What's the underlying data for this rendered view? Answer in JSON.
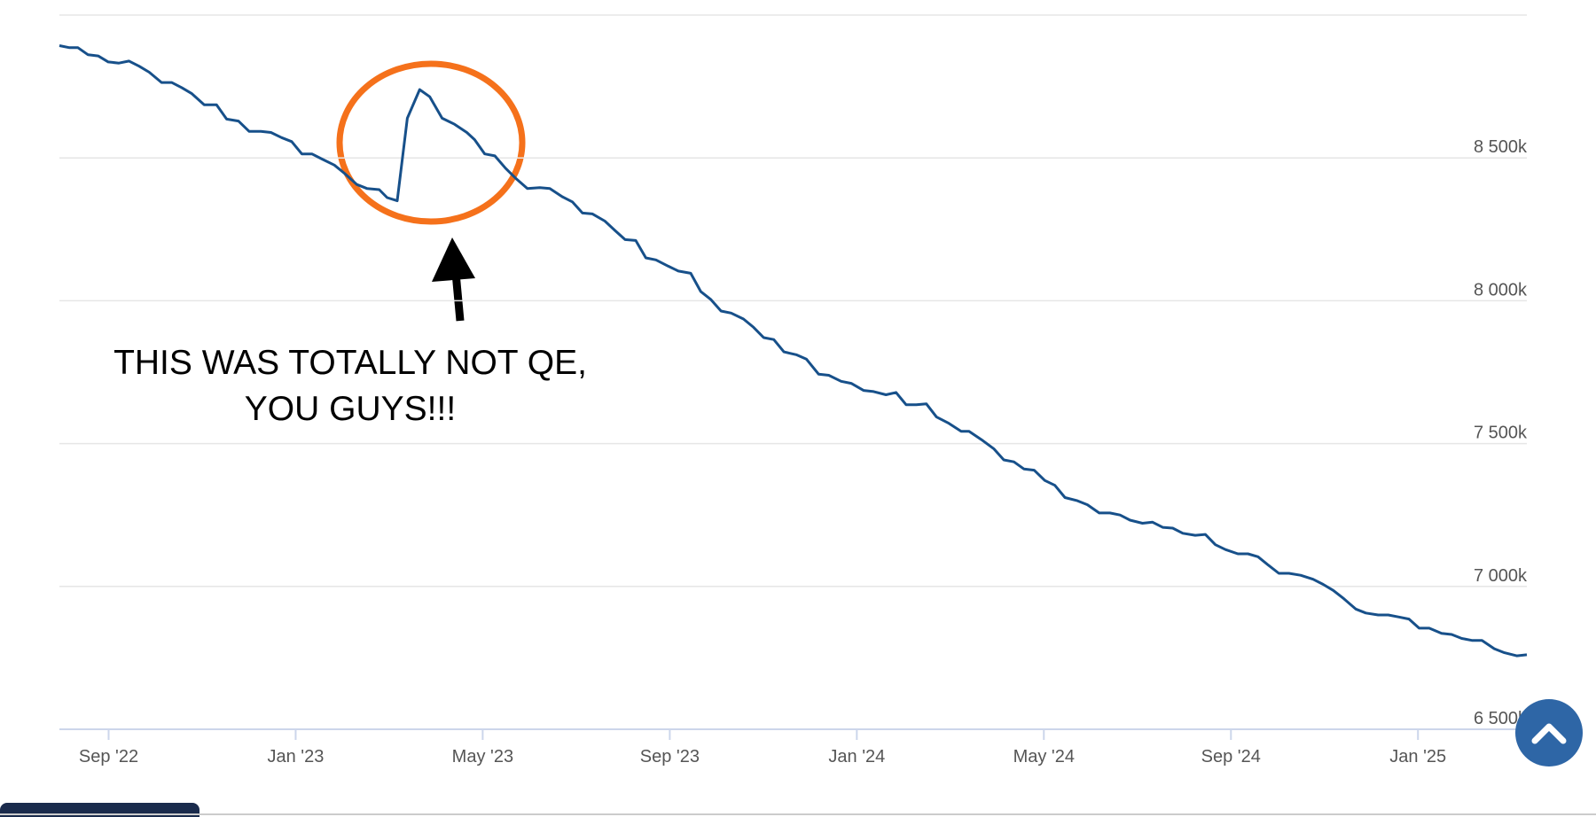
{
  "chart_data": {
    "type": "line",
    "annotation": [
      "THIS WAS TOTALLY NOT QE,",
      "YOU GUYS!!!"
    ],
    "color": "#17508a",
    "x": [
      2022.579,
      2022.597,
      2022.612,
      2022.63,
      2022.648,
      2022.666,
      2022.685,
      2022.703,
      2022.721,
      2022.739,
      2022.761,
      2022.779,
      2022.797,
      2022.815,
      2022.837,
      2022.859,
      2022.877,
      2022.898,
      2022.917,
      2022.938,
      2022.956,
      2022.975,
      2022.993,
      2023.011,
      2023.029,
      2023.047,
      2023.069,
      2023.087,
      2023.109,
      2023.127,
      2023.149,
      2023.163,
      2023.181,
      2023.199,
      2023.221,
      2023.239,
      2023.261,
      2023.283,
      2023.305,
      2023.319,
      2023.337,
      2023.355,
      2023.374,
      2023.392,
      2023.413,
      2023.435,
      2023.453,
      2023.475,
      2023.493,
      2023.511,
      2023.529,
      2023.551,
      2023.569,
      2023.587,
      2023.606,
      2023.624,
      2023.642,
      2023.664,
      2023.682,
      2023.704,
      2023.722,
      2023.74,
      2023.758,
      2023.776,
      2023.798,
      2023.816,
      2023.834,
      2023.852,
      2023.87,
      2023.892,
      2023.91,
      2023.932,
      2023.95,
      2023.972,
      2023.99,
      2024.012,
      2024.03,
      2024.052,
      2024.07,
      2024.088,
      2024.106,
      2024.124,
      2024.142,
      2024.164,
      2024.186,
      2024.2,
      2024.222,
      2024.244,
      2024.262,
      2024.28,
      2024.298,
      2024.316,
      2024.335,
      2024.353,
      2024.371,
      2024.393,
      2024.411,
      2024.432,
      2024.451,
      2024.469,
      2024.487,
      2024.509,
      2024.527,
      2024.545,
      2024.563,
      2024.581,
      2024.603,
      2024.621,
      2024.639,
      2024.657,
      2024.679,
      2024.697,
      2024.715,
      2024.733,
      2024.752,
      2024.77,
      2024.791,
      2024.813,
      2024.831,
      2024.849,
      2024.868,
      2024.889,
      2024.907,
      2024.929,
      2024.947,
      2024.966,
      2024.984,
      2025.002,
      2025.02,
      2025.042,
      2025.06,
      2025.078,
      2025.096,
      2025.114,
      2025.136,
      2025.154,
      2025.176,
      2025.194
    ],
    "values": [
      8893,
      8886,
      8886,
      8861,
      8857,
      8836,
      8832,
      8839,
      8821,
      8800,
      8764,
      8764,
      8746,
      8725,
      8686,
      8686,
      8636,
      8629,
      8593,
      8593,
      8589,
      8571,
      8557,
      8514,
      8514,
      8496,
      8475,
      8446,
      8407,
      8393,
      8389,
      8361,
      8350,
      8639,
      8739,
      8714,
      8639,
      8618,
      8589,
      8564,
      8514,
      8507,
      8464,
      8429,
      8393,
      8396,
      8393,
      8364,
      8346,
      8307,
      8304,
      8279,
      8246,
      8214,
      8211,
      8150,
      8143,
      8121,
      8104,
      8096,
      8032,
      8004,
      7964,
      7957,
      7936,
      7907,
      7871,
      7864,
      7821,
      7811,
      7796,
      7743,
      7739,
      7718,
      7711,
      7686,
      7682,
      7671,
      7679,
      7636,
      7636,
      7639,
      7593,
      7571,
      7543,
      7543,
      7514,
      7482,
      7443,
      7436,
      7411,
      7407,
      7371,
      7354,
      7311,
      7300,
      7286,
      7257,
      7257,
      7250,
      7232,
      7221,
      7225,
      7207,
      7204,
      7186,
      7179,
      7182,
      7146,
      7129,
      7114,
      7114,
      7104,
      7075,
      7046,
      7046,
      7039,
      7025,
      7007,
      6986,
      6957,
      6921,
      6907,
      6900,
      6900,
      6893,
      6886,
      6854,
      6854,
      6836,
      6832,
      6818,
      6811,
      6811,
      6782,
      6768,
      6757,
      6761
    ],
    "xlim": [
      2022.579,
      2025.194
    ],
    "xticks": [
      {
        "value": 2022.6667,
        "label": "Sep '22"
      },
      {
        "value": 2023,
        "label": "Jan '23"
      },
      {
        "value": 2023.3333,
        "label": "May '23"
      },
      {
        "value": 2023.6667,
        "label": "Sep '23"
      },
      {
        "value": 2024,
        "label": "Jan '24"
      },
      {
        "value": 2024.3333,
        "label": "May '24"
      },
      {
        "value": 2024.6667,
        "label": "Sep '24"
      },
      {
        "value": 2025,
        "label": "Jan '25"
      }
    ],
    "ylim": [
      6500,
      9000
    ],
    "yticks": [
      {
        "value": 6500,
        "label": "6 500k"
      },
      {
        "value": 7000,
        "label": "7 000k"
      },
      {
        "value": 7500,
        "label": "7 500k"
      },
      {
        "value": 8000,
        "label": "8 000k"
      },
      {
        "value": 8500,
        "label": "8 500k"
      }
    ],
    "grid": true
  }
}
